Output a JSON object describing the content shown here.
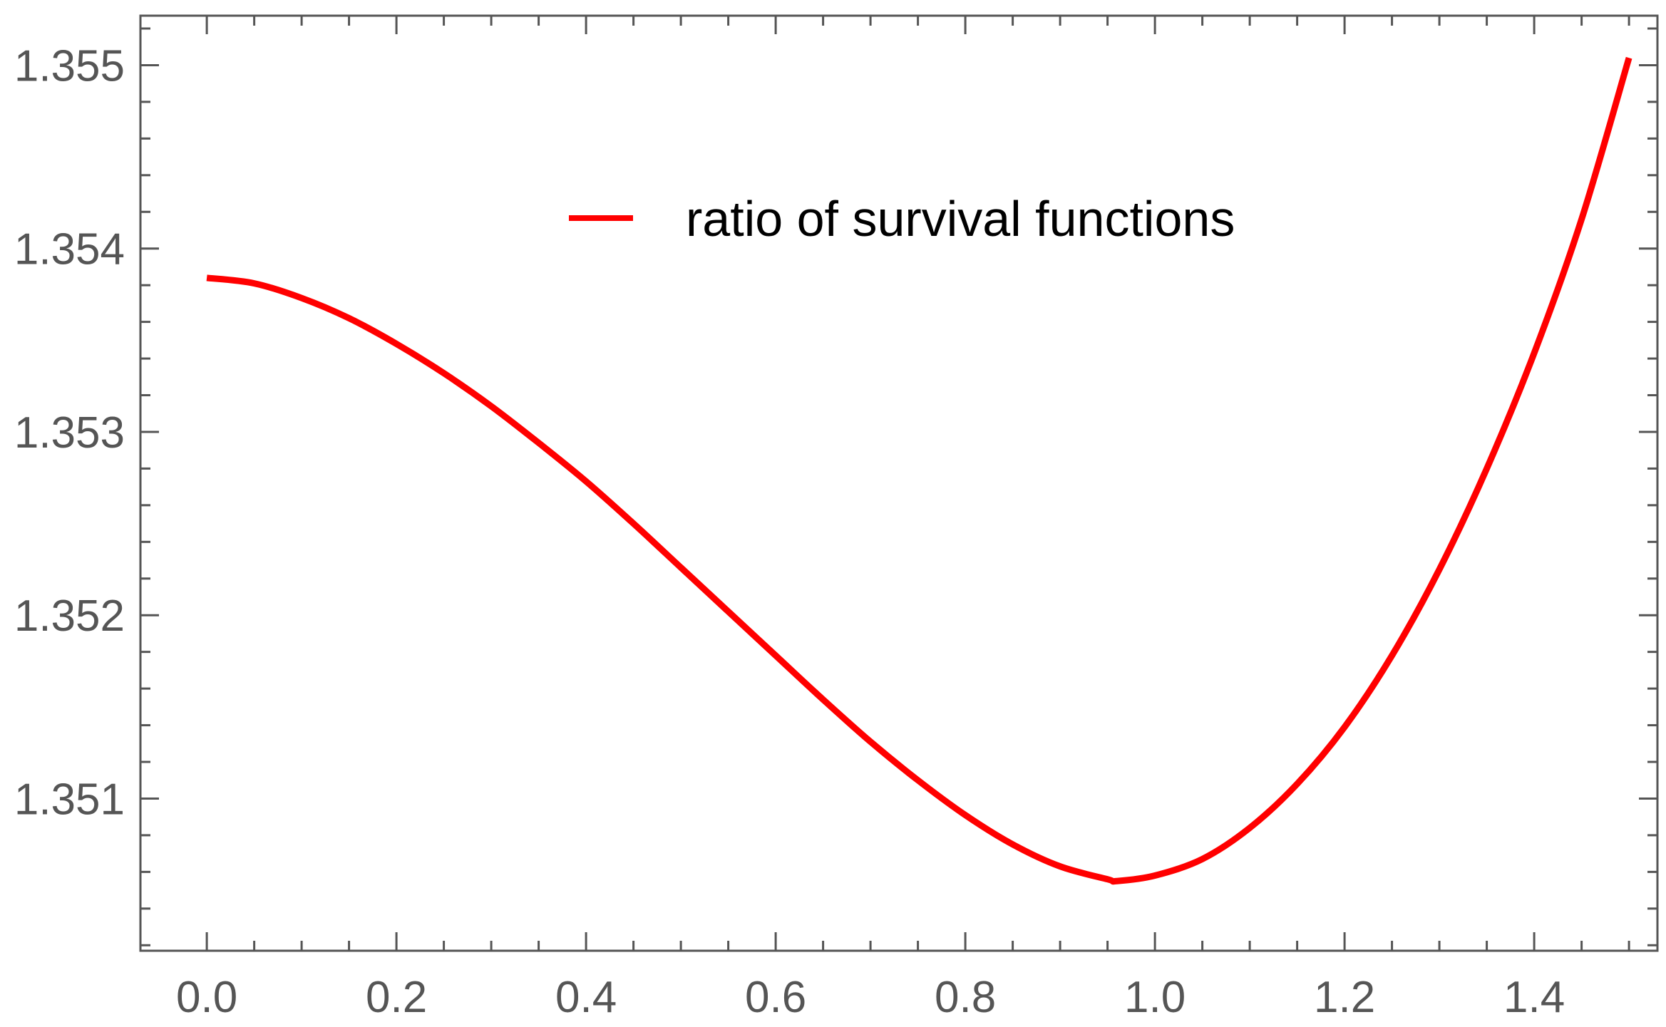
{
  "chart_data": {
    "type": "line",
    "title": "",
    "xlabel": "",
    "ylabel": "",
    "xlim": [
      -0.07,
      1.53
    ],
    "ylim": [
      1.35017,
      1.35527
    ],
    "x_ticks": [
      "0.0",
      "0.2",
      "0.4",
      "0.6",
      "0.8",
      "1.0",
      "1.2",
      "1.4"
    ],
    "y_ticks": [
      "1.351",
      "1.352",
      "1.353",
      "1.354",
      "1.355"
    ],
    "grid": false,
    "legend": {
      "position": "top-center"
    },
    "series": [
      {
        "name": "ratio of survival functions",
        "color": "#ff0000",
        "x": [
          0.0,
          0.05,
          0.1,
          0.15,
          0.2,
          0.25,
          0.3,
          0.35,
          0.4,
          0.45,
          0.5,
          0.55,
          0.6,
          0.65,
          0.7,
          0.75,
          0.8,
          0.85,
          0.9,
          0.95,
          0.96,
          1.0,
          1.05,
          1.1,
          1.15,
          1.2,
          1.25,
          1.3,
          1.35,
          1.4,
          1.45,
          1.5
        ],
        "y": [
          1.35384,
          1.35381,
          1.35373,
          1.35362,
          1.35348,
          1.35332,
          1.35314,
          1.35294,
          1.35273,
          1.3525,
          1.35226,
          1.35202,
          1.35178,
          1.35154,
          1.35131,
          1.3511,
          1.35091,
          1.35075,
          1.35063,
          1.35056,
          1.35055,
          1.35058,
          1.35067,
          1.35084,
          1.35108,
          1.35139,
          1.35178,
          1.35225,
          1.3528,
          1.35343,
          1.35416,
          1.35504
        ]
      }
    ]
  }
}
